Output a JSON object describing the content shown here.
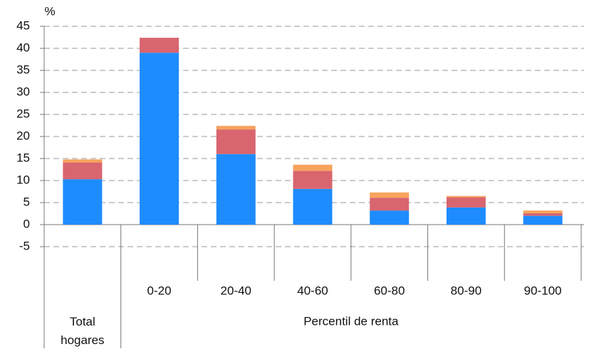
{
  "chart_data": {
    "type": "stacked_bar",
    "y_label": "%",
    "categories": [
      "Total hogares",
      "0-20",
      "20-40",
      "40-60",
      "60-80",
      "80-90",
      "90-100"
    ],
    "x_group_label": "Percentil de renta",
    "series": [
      {
        "color": "#1e8cff",
        "values": [
          10.3,
          39.0,
          16.0,
          8.1,
          3.2,
          3.9,
          2.0
        ]
      },
      {
        "color": "#d9656f",
        "values": [
          3.8,
          3.4,
          5.6,
          4.1,
          2.9,
          2.3,
          0.6
        ]
      },
      {
        "color": "#f7a35c",
        "values": [
          0.7,
          0,
          0.8,
          1.4,
          1.2,
          0.3,
          0.6
        ]
      }
    ],
    "ylim": [
      -5,
      45
    ],
    "yticks": [
      -5,
      0,
      5,
      10,
      15,
      20,
      25,
      30,
      35,
      40,
      45
    ],
    "grid": true
  }
}
